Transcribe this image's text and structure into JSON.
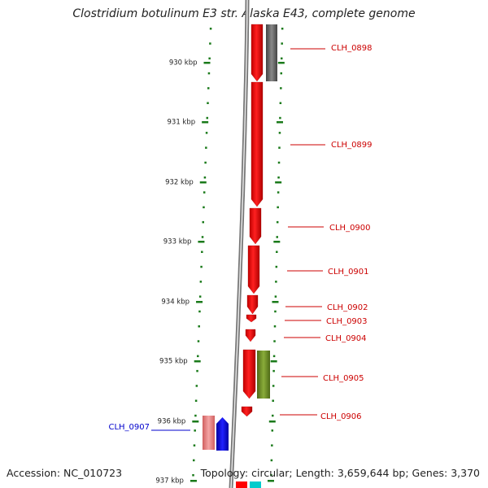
{
  "title": "Clostridium botulinum E3 str. Alaska E43, complete genome",
  "accession": "Accession: NC_010723",
  "summary": "Topology: circular; Length: 3,659,644 bp; Genes: 3,370",
  "colors": {
    "forward_gene": "#ff0000",
    "reverse_gene_blue": "#0000ff",
    "reverse_gene_pink": "#ee8888",
    "pseudo_gray": "#666666",
    "olive": "#6b8e23",
    "tick_green": "#1a7a1a",
    "label_red": "#cc0000",
    "label_blue": "#0000cc",
    "backbone": "#888888",
    "cyan": "#00cccc"
  },
  "scale_ticks": [
    {
      "label": "930 kbp"
    },
    {
      "label": "931 kbp"
    },
    {
      "label": "932 kbp"
    },
    {
      "label": "933 kbp"
    },
    {
      "label": "934 kbp"
    },
    {
      "label": "935 kbp"
    },
    {
      "label": "936 kbp"
    },
    {
      "label": "937 kbp"
    }
  ],
  "gene_labels": [
    {
      "text": "CLH_0898",
      "side": "right",
      "color": "label_red"
    },
    {
      "text": "CLH_0899",
      "side": "right",
      "color": "label_red"
    },
    {
      "text": "CLH_0900",
      "side": "right",
      "color": "label_red"
    },
    {
      "text": "CLH_0901",
      "side": "right",
      "color": "label_red"
    },
    {
      "text": "CLH_0902",
      "side": "right",
      "color": "label_red"
    },
    {
      "text": "CLH_0903",
      "side": "right",
      "color": "label_red"
    },
    {
      "text": "CLH_0904",
      "side": "right",
      "color": "label_red"
    },
    {
      "text": "CLH_0905",
      "side": "right",
      "color": "label_red"
    },
    {
      "text": "CLH_0906",
      "side": "right",
      "color": "label_red"
    },
    {
      "text": "CLH_0907",
      "side": "left",
      "color": "label_blue"
    }
  ]
}
